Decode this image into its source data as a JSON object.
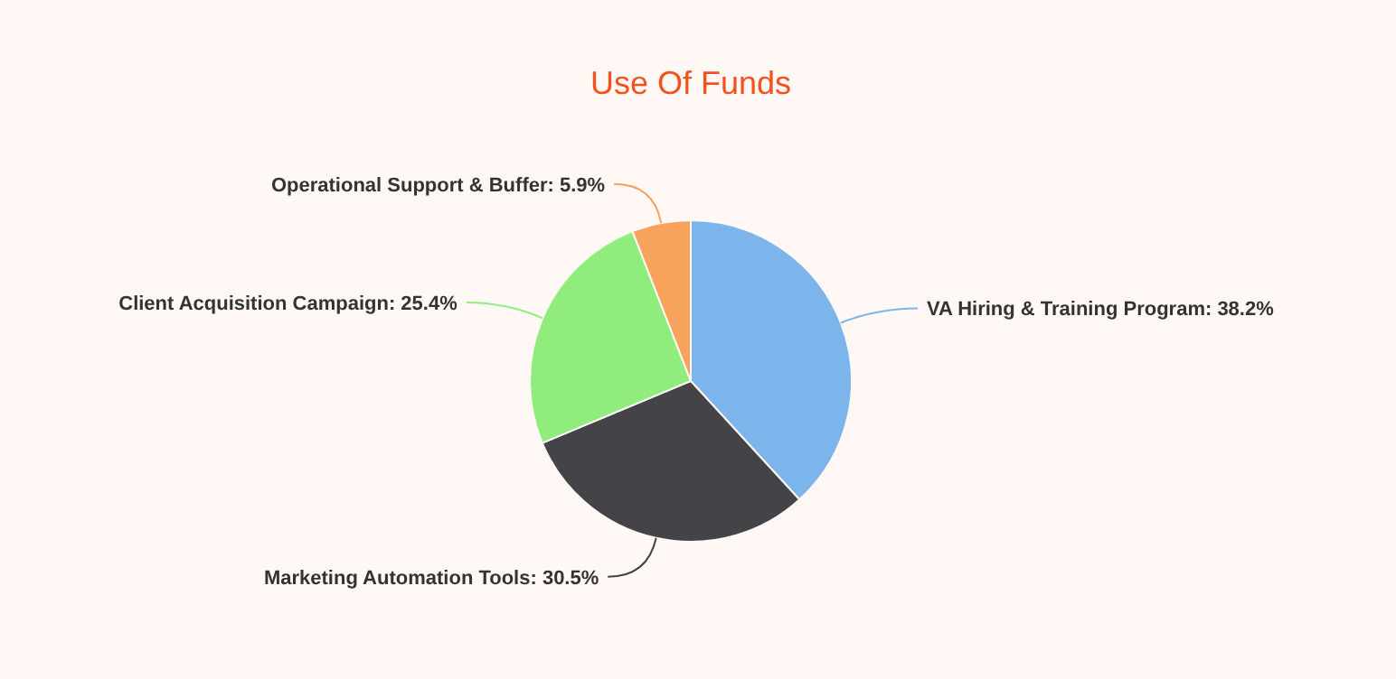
{
  "chart_data": {
    "type": "pie",
    "title": "Use Of Funds",
    "categories": [
      "VA Hiring & Training Program",
      "Marketing Automation Tools",
      "Client Acquisition Campaign",
      "Operational Support & Buffer"
    ],
    "values": [
      38.2,
      30.5,
      25.4,
      5.9
    ],
    "value_labels": [
      "38.2%",
      "30.5%",
      "25.4%",
      "5.9%"
    ],
    "colors": [
      "#7cb5ec",
      "#434348",
      "#90ed7d",
      "#f7a35c"
    ]
  }
}
